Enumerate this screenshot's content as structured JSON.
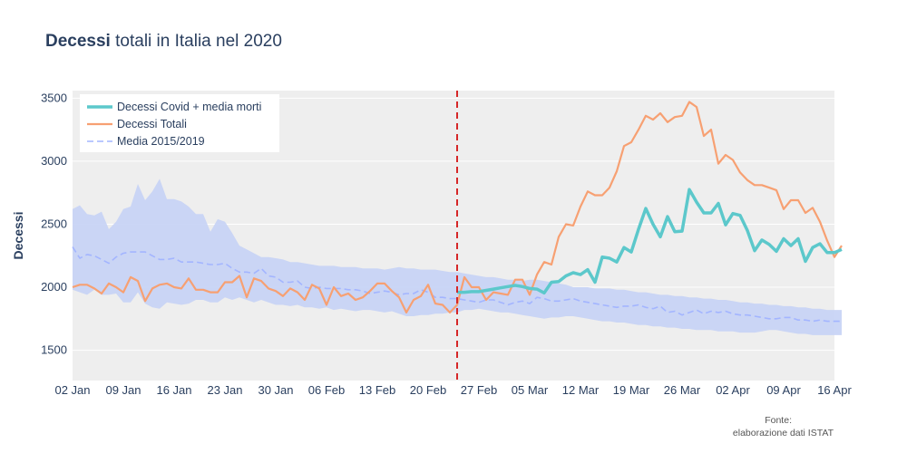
{
  "title": {
    "bold": "Decessi",
    "rest": " totali in Italia nel 2020"
  },
  "source": {
    "line1": "Fonte:",
    "line2": "elaborazione dati ISTAT"
  },
  "colors": {
    "covid": "#5cc8cb",
    "totali": "#f7a072",
    "media": "#a3b5ff",
    "band": "#c5d2f5",
    "plot_bg": "#eeeeee",
    "vline": "#d62728"
  },
  "chart_data": {
    "type": "line",
    "title": "Decessi totali in Italia nel 2020",
    "xlabel": "",
    "ylabel": "Decessi",
    "x_start": "2020-01-02",
    "x_end": "2020-04-16",
    "ylim": [
      1260,
      3560
    ],
    "y_ticks": [
      1500,
      2000,
      2500,
      3000,
      3500
    ],
    "x_tick_labels": [
      "02 Jan",
      "09 Jan",
      "16 Jan",
      "23 Jan",
      "30 Jan",
      "06 Feb",
      "13 Feb",
      "20 Feb",
      "27 Feb",
      "05 Mar",
      "12 Mar",
      "19 Mar",
      "26 Mar",
      "02 Apr",
      "09 Apr",
      "16 Apr"
    ],
    "vertical_line_date": "2020-02-24",
    "grid": true,
    "legend_position": "top-left",
    "series": [
      {
        "name": "Decessi Covid + media morti",
        "style": "solid-thick",
        "start": "2020-02-24",
        "values": [
          1960,
          1960,
          1965,
          1965,
          1975,
          1985,
          1995,
          2005,
          2015,
          2005,
          1990,
          1985,
          1955,
          2040,
          2045,
          2090,
          2115,
          2100,
          2140,
          2040,
          2240,
          2230,
          2200,
          2315,
          2280,
          2460,
          2625,
          2500,
          2400,
          2560,
          2440,
          2445,
          2775,
          2675,
          2590,
          2590,
          2665,
          2495,
          2585,
          2570,
          2450,
          2290,
          2375,
          2340,
          2285,
          2385,
          2330,
          2385,
          2205,
          2315,
          2345,
          2275,
          2275,
          2300
        ]
      },
      {
        "name": "Decessi Totali",
        "style": "solid",
        "start": "2020-01-02",
        "values": [
          2000,
          2020,
          2020,
          1990,
          1950,
          2030,
          2000,
          1960,
          2080,
          2050,
          1890,
          1990,
          2020,
          2030,
          2000,
          1990,
          2070,
          1980,
          1980,
          1960,
          1960,
          2040,
          2040,
          2090,
          1920,
          2070,
          2050,
          1990,
          1970,
          1930,
          1990,
          1960,
          1900,
          2020,
          1990,
          1860,
          2000,
          1930,
          1950,
          1900,
          1920,
          1970,
          2030,
          2030,
          1970,
          1920,
          1800,
          1900,
          1930,
          2020,
          1870,
          1860,
          1800,
          1860,
          2080,
          2000,
          2000,
          1900,
          1960,
          1950,
          1940,
          2060,
          2060,
          1940,
          2100,
          2200,
          2180,
          2400,
          2500,
          2490,
          2640,
          2760,
          2730,
          2730,
          2790,
          2920,
          3120,
          3150,
          3250,
          3360,
          3330,
          3380,
          3310,
          3350,
          3360,
          3470,
          3430,
          3200,
          3250,
          2980,
          3050,
          3010,
          2910,
          2850,
          2810,
          2810,
          2790,
          2770,
          2620,
          2690,
          2690,
          2590,
          2630,
          2520,
          2370,
          2240,
          2330
        ]
      },
      {
        "name": "Media 2015/2019",
        "style": "dashed",
        "start": "2020-01-02",
        "values": [
          2320,
          2230,
          2260,
          2250,
          2220,
          2190,
          2240,
          2270,
          2280,
          2280,
          2280,
          2250,
          2220,
          2220,
          2230,
          2200,
          2200,
          2200,
          2190,
          2180,
          2180,
          2190,
          2150,
          2120,
          2120,
          2110,
          2150,
          2090,
          2080,
          2040,
          2040,
          2050,
          2000,
          1990,
          2000,
          1990,
          1990,
          1990,
          1980,
          1980,
          1970,
          1950,
          1960,
          1970,
          1960,
          1940,
          1950,
          1950,
          1980,
          1960,
          1920,
          1920,
          1910,
          1910,
          1900,
          1890,
          1880,
          1900,
          1900,
          1880,
          1860,
          1880,
          1890,
          1870,
          1920,
          1910,
          1890,
          1890,
          1900,
          1910,
          1890,
          1880,
          1870,
          1860,
          1850,
          1840,
          1850,
          1850,
          1860,
          1840,
          1830,
          1850,
          1800,
          1810,
          1780,
          1800,
          1820,
          1790,
          1810,
          1800,
          1810,
          1790,
          1780,
          1780,
          1770,
          1760,
          1750,
          1750,
          1760,
          1760,
          1740,
          1740,
          1730,
          1740,
          1730,
          1730,
          1730
        ]
      },
      {
        "name": "Range 2015/2019",
        "style": "band",
        "start": "2020-01-02",
        "upper": [
          2620,
          2650,
          2580,
          2570,
          2600,
          2460,
          2520,
          2620,
          2640,
          2820,
          2690,
          2760,
          2860,
          2700,
          2700,
          2680,
          2640,
          2580,
          2580,
          2440,
          2540,
          2520,
          2430,
          2330,
          2300,
          2270,
          2240,
          2240,
          2230,
          2220,
          2200,
          2200,
          2190,
          2180,
          2170,
          2170,
          2170,
          2160,
          2160,
          2160,
          2150,
          2150,
          2150,
          2140,
          2150,
          2160,
          2150,
          2150,
          2140,
          2140,
          2140,
          2130,
          2120,
          2120,
          2110,
          2100,
          2090,
          2080,
          2080,
          2070,
          2060,
          2060,
          2050,
          2060,
          2060,
          2050,
          2040,
          2030,
          2020,
          2000,
          2000,
          2000,
          1990,
          1990,
          1990,
          1980,
          1980,
          1970,
          1960,
          1960,
          1950,
          1940,
          1940,
          1930,
          1930,
          1920,
          1920,
          1910,
          1910,
          1900,
          1900,
          1890,
          1880,
          1880,
          1870,
          1870,
          1860,
          1860,
          1850,
          1850,
          1840,
          1840,
          1830,
          1830,
          1820,
          1820,
          1820
        ],
        "lower": [
          1980,
          1960,
          1940,
          1980,
          1940,
          1940,
          1950,
          1880,
          1880,
          1960,
          1870,
          1840,
          1830,
          1880,
          1870,
          1860,
          1870,
          1900,
          1900,
          1880,
          1880,
          1920,
          1900,
          1920,
          1900,
          1880,
          1900,
          1880,
          1860,
          1860,
          1850,
          1860,
          1840,
          1840,
          1830,
          1840,
          1820,
          1830,
          1820,
          1810,
          1820,
          1820,
          1810,
          1800,
          1810,
          1790,
          1770,
          1770,
          1780,
          1780,
          1790,
          1790,
          1800,
          1800,
          1820,
          1820,
          1830,
          1820,
          1810,
          1800,
          1800,
          1790,
          1780,
          1770,
          1760,
          1750,
          1760,
          1760,
          1770,
          1770,
          1760,
          1750,
          1740,
          1730,
          1730,
          1720,
          1720,
          1710,
          1700,
          1700,
          1690,
          1690,
          1680,
          1680,
          1670,
          1670,
          1660,
          1660,
          1660,
          1650,
          1650,
          1650,
          1640,
          1640,
          1640,
          1650,
          1660,
          1660,
          1650,
          1640,
          1630,
          1630,
          1620,
          1620,
          1620,
          1620,
          1620
        ]
      }
    ]
  }
}
